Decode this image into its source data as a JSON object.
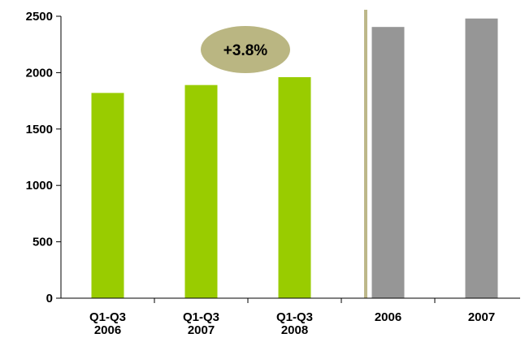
{
  "chart_data": {
    "type": "bar",
    "title": "",
    "xlabel": "",
    "ylabel": "",
    "ylim": [
      0,
      2500
    ],
    "yticks": [
      0,
      500,
      1000,
      1500,
      2000,
      2500
    ],
    "categories": [
      [
        "Q1-Q3",
        "2006"
      ],
      [
        "Q1-Q3",
        "2007"
      ],
      [
        "Q1-Q3",
        "2008"
      ],
      [
        "2006"
      ],
      [
        "2007"
      ]
    ],
    "values": [
      1820,
      1890,
      1960,
      2405,
      2480
    ],
    "bar_colors": [
      "#99cc00",
      "#99cc00",
      "#99cc00",
      "#969696",
      "#969696"
    ],
    "divider_color": "#bdb88a",
    "annotation": {
      "text": "+3.8%",
      "fill": "#bab682"
    },
    "grid": false,
    "legend": "none"
  }
}
